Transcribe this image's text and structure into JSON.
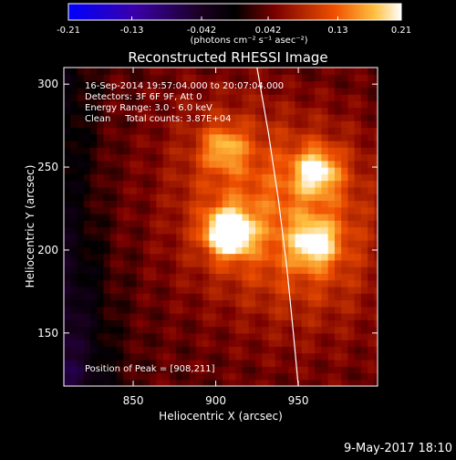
{
  "colorbar": {
    "ticks": [
      "-0.21",
      "-0.13",
      "-0.042",
      "0.042",
      "0.13",
      "0.21"
    ],
    "units_label": "(photons cm⁻² s⁻¹ asec⁻²)",
    "range": [
      -0.21,
      0.21
    ]
  },
  "chart_data": {
    "type": "heatmap",
    "title": "Reconstructed RHESSI Image",
    "xlabel": "Heliocentric X (arcsec)",
    "ylabel": "Heliocentric Y (arcsec)",
    "xlim": [
      808,
      998
    ],
    "ylim": [
      118,
      310
    ],
    "x_ticks": [
      850,
      900,
      950
    ],
    "y_ticks": [
      150,
      200,
      250,
      300
    ],
    "value_range": [
      -0.21,
      0.21
    ],
    "annotations": [
      "16-Sep-2014 19:57:04.000 to 20:07:04.000",
      "Detectors: 3F 6F 9F, Att 0",
      "Energy Range: 3.0 - 6.0 keV",
      "Clean     Total counts: 3.87E+04"
    ],
    "peak_label": "Position of Peak = [908,211]",
    "peak": [
      908,
      211
    ],
    "sources": [
      {
        "x": 908,
        "y": 211,
        "intensity": 0.21
      },
      {
        "x": 961,
        "y": 248,
        "intensity": 0.12
      },
      {
        "x": 960,
        "y": 204,
        "intensity": 0.11
      },
      {
        "x": 905,
        "y": 262,
        "intensity": 0.08
      }
    ],
    "limb_curve": [
      [
        925,
        310
      ],
      [
        932,
        270
      ],
      [
        938,
        230
      ],
      [
        943,
        190
      ],
      [
        947,
        150
      ],
      [
        950,
        118
      ]
    ]
  },
  "footer": {
    "date": "9-May-2017 18:10"
  }
}
